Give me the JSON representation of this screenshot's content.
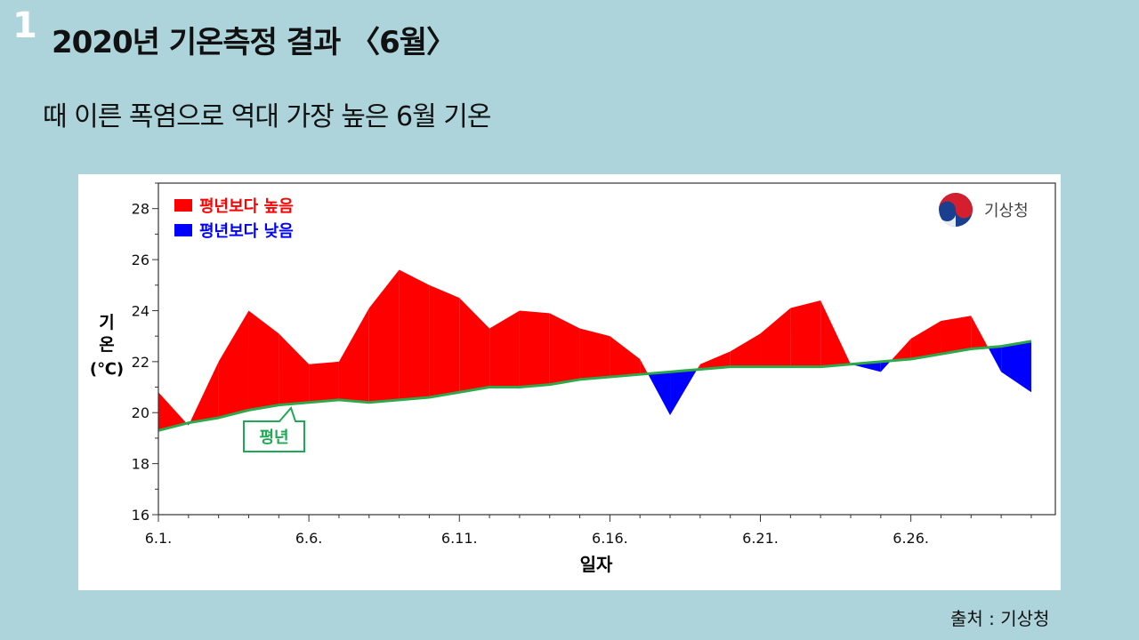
{
  "slide": {
    "number": "1",
    "title": "2020년 기온측정 결과 〈6월〉",
    "subtitle": "때 이른 폭염으로 역대 가장 높은 6월 기온",
    "source": "출처 : 기상청"
  },
  "colors": {
    "background": "#acd4da",
    "above": "#ff0000",
    "below": "#0000ff",
    "normal_line": "#2ea84a"
  },
  "chart_data": {
    "type": "area",
    "xlabel": "일자",
    "ylabel": [
      "기",
      "온",
      "(℃)"
    ],
    "ylim": [
      16,
      29
    ],
    "yticks": [
      "16",
      "18",
      "20",
      "22",
      "24",
      "26",
      "28"
    ],
    "xticks": [
      {
        "day": 1,
        "label": "6.1."
      },
      {
        "day": 6,
        "label": "6.6."
      },
      {
        "day": 11,
        "label": "6.11."
      },
      {
        "day": 16,
        "label": "6.16."
      },
      {
        "day": 21,
        "label": "6.21."
      },
      {
        "day": 26,
        "label": "6.26."
      }
    ],
    "days": [
      1,
      2,
      3,
      4,
      5,
      6,
      7,
      8,
      9,
      10,
      11,
      12,
      13,
      14,
      15,
      16,
      17,
      18,
      19,
      20,
      21,
      22,
      23,
      24,
      25,
      26,
      27,
      28,
      29,
      30
    ],
    "series": [
      {
        "key": "actual",
        "values": [
          20.8,
          19.5,
          22.0,
          24.0,
          23.1,
          21.9,
          22.0,
          24.1,
          25.6,
          25.0,
          24.5,
          23.3,
          24.0,
          23.9,
          23.3,
          23.0,
          22.1,
          19.9,
          21.9,
          22.4,
          23.1,
          24.1,
          24.4,
          21.9,
          21.6,
          22.9,
          23.6,
          23.8,
          21.6,
          20.8
        ]
      },
      {
        "key": "normal",
        "name": "평년",
        "values": [
          19.3,
          19.6,
          19.8,
          20.1,
          20.3,
          20.4,
          20.5,
          20.4,
          20.5,
          20.6,
          20.8,
          21.0,
          21.0,
          21.1,
          21.3,
          21.4,
          21.5,
          21.6,
          21.7,
          21.8,
          21.8,
          21.8,
          21.8,
          21.9,
          22.0,
          22.1,
          22.3,
          22.5,
          22.6,
          22.8
        ]
      }
    ],
    "legend": {
      "position": "top-left",
      "entries": [
        {
          "label": "평년보다 높음",
          "color": "#ff0000"
        },
        {
          "label": "평년보다 낮음",
          "color": "#0000ff"
        }
      ]
    },
    "normal_label": "평년",
    "logo_text": "기상청"
  }
}
